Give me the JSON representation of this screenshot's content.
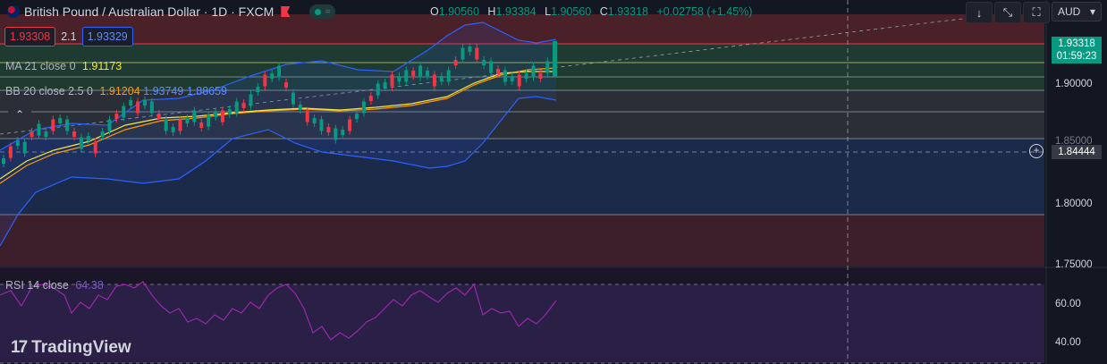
{
  "header": {
    "symbol_title": "British Pound / Australian Dollar · 1D · FXCM",
    "live_wave": "≈"
  },
  "ohlc": {
    "o_label": "O",
    "o_value": "1.90560",
    "h_label": "H",
    "h_value": "1.93384",
    "l_label": "L",
    "l_value": "1.90560",
    "c_label": "C",
    "c_value": "1.93318",
    "change": "+0.02758 (+1.45%)"
  },
  "trade": {
    "sell_price": "1.93308",
    "spread": "2.1",
    "buy_price": "1.93329"
  },
  "indicators": {
    "ma": {
      "label": "MA 21 close 0",
      "value": "1.91173"
    },
    "bb": {
      "label": "BB 20 close 2.5 0",
      "basis": "1.91204",
      "upper": "1.93749",
      "lower": "1.88659"
    },
    "rsi": {
      "label": "RSI 14 close",
      "value": "64.38"
    }
  },
  "toolbar": {
    "currency": "AUD",
    "currency_caret": "▾",
    "btn_down": "↓",
    "btn_collapse": "⤡",
    "btn_fullscreen": "⛶",
    "btn_expand": "▾",
    "collapse_legend": "⌃"
  },
  "price_axis": {
    "labels": [
      "1.90000",
      "1.85000",
      "1.80000",
      "1.75000"
    ],
    "last_price": "1.93318",
    "countdown": "01:59:23",
    "crosshair_price": "1.84444"
  },
  "rsi_axis": {
    "labels": [
      "60.00",
      "40.00"
    ]
  },
  "brand": {
    "name": "TradingView",
    "mark": "17"
  },
  "colors": {
    "up": "#089981",
    "down": "#f23645",
    "ma": "#f7e73a",
    "bb_basis": "#ff9800",
    "bb_band": "#2962ff",
    "rsi": "#7e57c2"
  }
}
